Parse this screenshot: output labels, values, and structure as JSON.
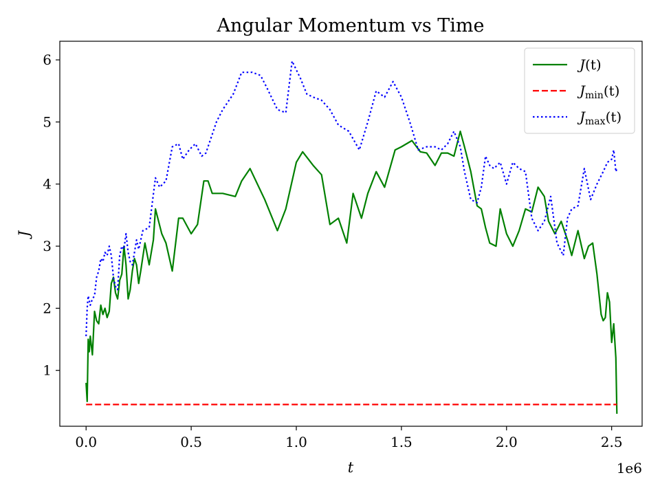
{
  "chart_data": {
    "type": "line",
    "title": "Angular Momentum vs Time",
    "xlabel": "t",
    "ylabel": "J",
    "x_offset_label": "1e6",
    "xlim": [
      -0.125,
      2.645
    ],
    "ylim": [
      0.1,
      6.3
    ],
    "xticks": [
      0.0,
      0.5,
      1.0,
      1.5,
      2.0,
      2.5
    ],
    "xtick_labels": [
      "0.0",
      "0.5",
      "1.0",
      "1.5",
      "2.0",
      "2.5"
    ],
    "yticks": [
      1,
      2,
      3,
      4,
      5,
      6
    ],
    "ytick_labels": [
      "1",
      "2",
      "3",
      "4",
      "5",
      "6"
    ],
    "grid": false,
    "legend_position": "top-right",
    "series": [
      {
        "name": "J(t)",
        "legend_main": "J",
        "legend_sub": "",
        "legend_tail": "(t)",
        "color": "#008000",
        "style": "solid",
        "x": [
          0.0,
          0.005,
          0.01,
          0.015,
          0.02,
          0.03,
          0.04,
          0.05,
          0.06,
          0.07,
          0.08,
          0.09,
          0.1,
          0.11,
          0.12,
          0.13,
          0.14,
          0.15,
          0.16,
          0.17,
          0.18,
          0.19,
          0.2,
          0.21,
          0.22,
          0.23,
          0.24,
          0.25,
          0.26,
          0.28,
          0.3,
          0.32,
          0.33,
          0.36,
          0.38,
          0.41,
          0.44,
          0.46,
          0.5,
          0.53,
          0.56,
          0.58,
          0.6,
          0.62,
          0.65,
          0.71,
          0.74,
          0.78,
          0.85,
          0.91,
          0.95,
          1.0,
          1.03,
          1.08,
          1.12,
          1.16,
          1.2,
          1.24,
          1.27,
          1.31,
          1.34,
          1.38,
          1.42,
          1.47,
          1.5,
          1.55,
          1.59,
          1.62,
          1.66,
          1.69,
          1.72,
          1.75,
          1.78,
          1.8,
          1.83,
          1.86,
          1.88,
          1.9,
          1.92,
          1.95,
          1.97,
          2.0,
          2.03,
          2.06,
          2.09,
          2.12,
          2.15,
          2.18,
          2.2,
          2.23,
          2.26,
          2.29,
          2.31,
          2.34,
          2.37,
          2.39,
          2.41,
          2.43,
          2.45,
          2.46,
          2.47,
          2.48,
          2.49,
          2.5,
          2.51,
          2.52,
          2.525
        ],
        "y": [
          0.8,
          0.5,
          1.5,
          1.3,
          1.55,
          1.25,
          1.95,
          1.8,
          1.75,
          2.05,
          1.9,
          2.0,
          1.85,
          1.95,
          2.4,
          2.5,
          2.25,
          2.15,
          2.45,
          2.55,
          3.0,
          2.7,
          2.15,
          2.3,
          2.6,
          2.8,
          2.7,
          2.4,
          2.6,
          3.05,
          2.7,
          3.1,
          3.6,
          3.2,
          3.05,
          2.6,
          3.45,
          3.45,
          3.2,
          3.35,
          4.05,
          4.05,
          3.85,
          3.85,
          3.85,
          3.8,
          4.05,
          4.25,
          3.75,
          3.25,
          3.6,
          4.35,
          4.52,
          4.3,
          4.15,
          3.35,
          3.45,
          3.05,
          3.85,
          3.45,
          3.85,
          4.2,
          3.95,
          4.55,
          4.6,
          4.7,
          4.52,
          4.5,
          4.3,
          4.5,
          4.5,
          4.45,
          4.85,
          4.6,
          4.2,
          3.65,
          3.6,
          3.3,
          3.05,
          3.0,
          3.6,
          3.2,
          3.0,
          3.25,
          3.6,
          3.55,
          3.95,
          3.8,
          3.4,
          3.2,
          3.4,
          3.1,
          2.85,
          3.25,
          2.8,
          3.0,
          3.05,
          2.55,
          1.9,
          1.8,
          1.85,
          2.25,
          2.1,
          1.45,
          1.75,
          1.2,
          0.3
        ],
        "linewidth": 2.2
      },
      {
        "name": "J_min(t)",
        "legend_main": "J",
        "legend_sub": "min",
        "legend_tail": "(t)",
        "color": "#ff0000",
        "style": "dashed",
        "x": [
          0.0,
          2.525
        ],
        "y": [
          0.45,
          0.45
        ],
        "linewidth": 2.2
      },
      {
        "name": "J_max(t)",
        "legend_main": "J",
        "legend_sub": "max",
        "legend_tail": "(t)",
        "color": "#0000ff",
        "style": "dotted",
        "x": [
          0.0,
          0.005,
          0.01,
          0.02,
          0.03,
          0.04,
          0.05,
          0.06,
          0.07,
          0.08,
          0.09,
          0.1,
          0.11,
          0.12,
          0.13,
          0.14,
          0.15,
          0.16,
          0.17,
          0.18,
          0.19,
          0.2,
          0.21,
          0.22,
          0.23,
          0.24,
          0.25,
          0.27,
          0.3,
          0.33,
          0.35,
          0.38,
          0.41,
          0.44,
          0.46,
          0.49,
          0.52,
          0.55,
          0.57,
          0.6,
          0.62,
          0.65,
          0.7,
          0.74,
          0.79,
          0.83,
          0.86,
          0.91,
          0.95,
          0.98,
          1.02,
          1.05,
          1.08,
          1.12,
          1.16,
          1.2,
          1.25,
          1.3,
          1.34,
          1.38,
          1.42,
          1.46,
          1.5,
          1.54,
          1.58,
          1.62,
          1.66,
          1.69,
          1.72,
          1.75,
          1.78,
          1.8,
          1.83,
          1.86,
          1.88,
          1.9,
          1.92,
          1.94,
          1.97,
          2.0,
          2.03,
          2.06,
          2.09,
          2.12,
          2.15,
          2.18,
          2.21,
          2.24,
          2.27,
          2.29,
          2.31,
          2.34,
          2.37,
          2.4,
          2.43,
          2.46,
          2.48,
          2.5,
          2.51,
          2.52,
          2.525
        ],
        "y": [
          1.55,
          2.0,
          2.2,
          2.05,
          2.15,
          2.2,
          2.5,
          2.6,
          2.8,
          2.75,
          2.9,
          2.85,
          3.0,
          2.85,
          2.5,
          2.35,
          2.3,
          2.85,
          3.0,
          2.95,
          3.2,
          2.9,
          2.75,
          2.7,
          2.9,
          3.1,
          2.95,
          3.25,
          3.3,
          4.1,
          3.95,
          4.05,
          4.6,
          4.65,
          4.4,
          4.55,
          4.65,
          4.45,
          4.5,
          4.8,
          5.0,
          5.2,
          5.45,
          5.8,
          5.8,
          5.75,
          5.55,
          5.2,
          5.15,
          5.98,
          5.7,
          5.45,
          5.4,
          5.35,
          5.2,
          4.95,
          4.85,
          4.55,
          5.0,
          5.5,
          5.4,
          5.65,
          5.4,
          5.0,
          4.55,
          4.6,
          4.6,
          4.55,
          4.65,
          4.85,
          4.6,
          4.2,
          3.75,
          3.7,
          3.95,
          4.45,
          4.3,
          4.25,
          4.35,
          4.0,
          4.35,
          4.25,
          4.2,
          3.45,
          3.25,
          3.4,
          3.8,
          3.05,
          2.85,
          3.45,
          3.6,
          3.65,
          4.25,
          3.75,
          4.0,
          4.2,
          4.35,
          4.4,
          4.55,
          4.2,
          4.25
        ],
        "linewidth": 2.2
      }
    ]
  }
}
